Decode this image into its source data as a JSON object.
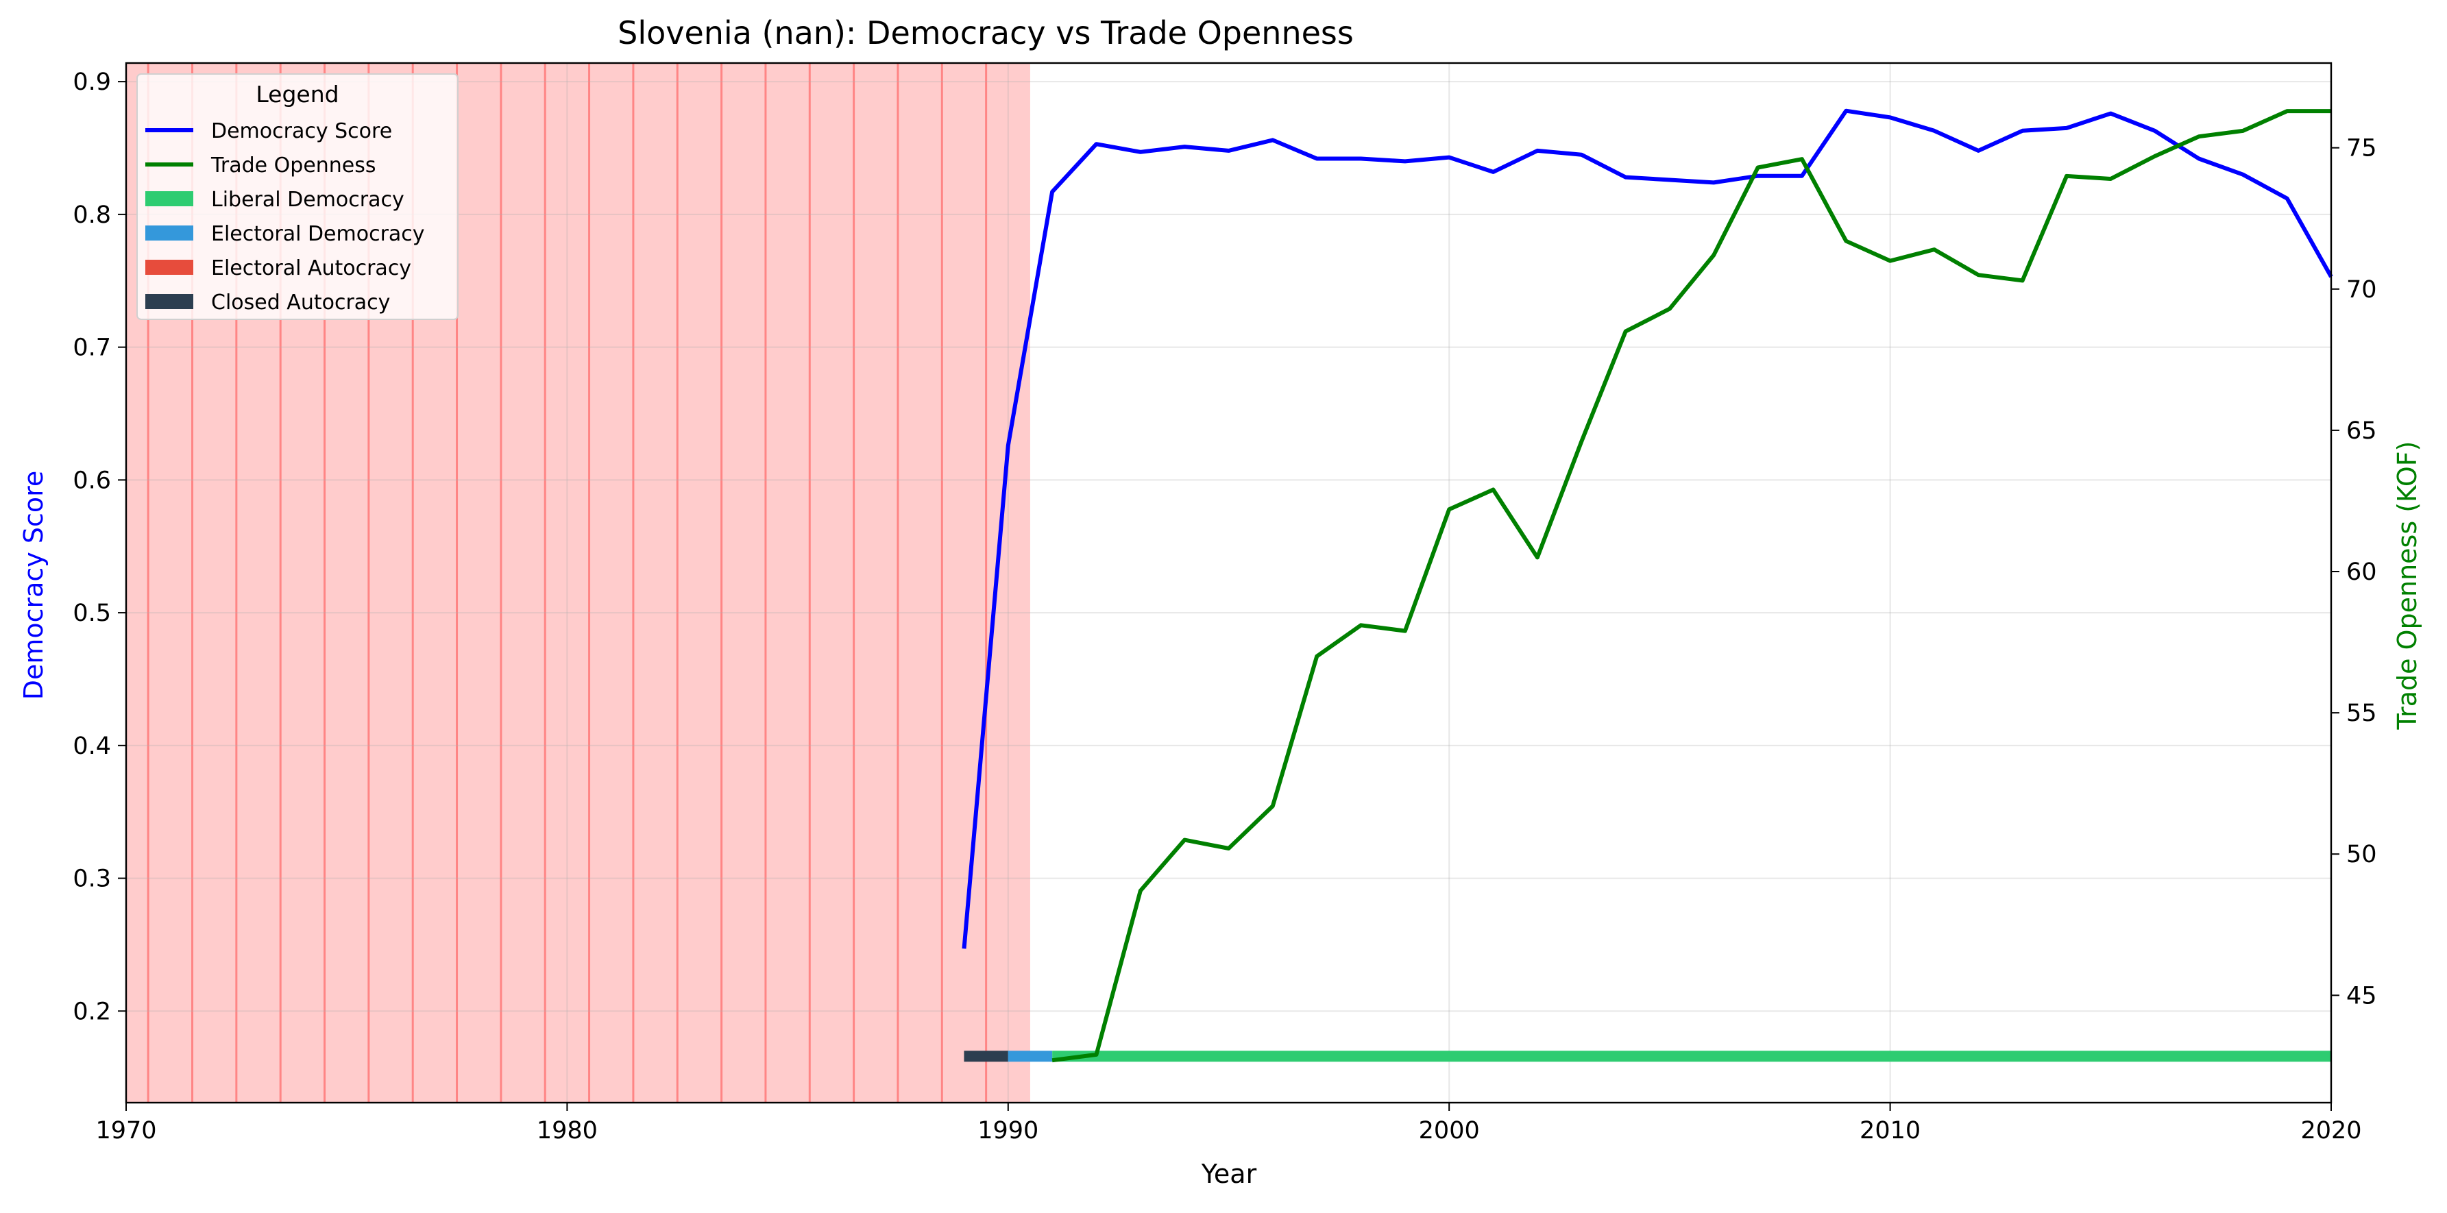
{
  "chart_data": {
    "type": "line",
    "title": "Slovenia (nan): Democracy vs Trade Openness",
    "xlabel": "Year",
    "ylabel_left": "Democracy Score",
    "ylabel_right": "Trade Openness (KOF)",
    "xlim": [
      1970,
      2020
    ],
    "ylim_left": [
      0.131,
      0.914
    ],
    "ylim_right": [
      41.2,
      78.0
    ],
    "x_ticks": [
      1970,
      1980,
      1990,
      2000,
      2010,
      2020
    ],
    "y_left_ticks": [
      0.2,
      0.3,
      0.4,
      0.5,
      0.6,
      0.7,
      0.8,
      0.9
    ],
    "y_right_ticks": [
      45,
      50,
      55,
      60,
      65,
      70,
      75
    ],
    "grid": true,
    "legend": {
      "title": "Legend",
      "position": "upper-left",
      "entries": [
        {
          "label": "Democracy Score",
          "kind": "line",
          "color": "#0000ff"
        },
        {
          "label": "Trade Openness",
          "kind": "line",
          "color": "#008000"
        },
        {
          "label": "Liberal Democracy",
          "kind": "patch",
          "color": "#2ecc71"
        },
        {
          "label": "Electoral Democracy",
          "kind": "patch",
          "color": "#3498db"
        },
        {
          "label": "Electoral Autocracy",
          "kind": "patch",
          "color": "#e74c3c"
        },
        {
          "label": "Closed Autocracy",
          "kind": "patch",
          "color": "#2c3e50"
        }
      ]
    },
    "shaded_region": {
      "start": 1970,
      "end": 1990.5,
      "color": "#ff0000"
    },
    "shaded_region_lines": [
      1970.5,
      1971.5,
      1972.5,
      1973.5,
      1974.5,
      1975.5,
      1976.5,
      1977.5,
      1978.5,
      1979.5,
      1980.5,
      1981.5,
      1982.5,
      1983.5,
      1984.5,
      1985.5,
      1986.5,
      1987.5,
      1988.5,
      1989.5
    ],
    "series": [
      {
        "name": "Democracy Score",
        "axis": "left",
        "color": "#0000ff",
        "x": [
          1989,
          1990,
          1991,
          1992,
          1993,
          1994,
          1995,
          1996,
          1997,
          1998,
          1999,
          2000,
          2001,
          2002,
          2003,
          2004,
          2005,
          2006,
          2007,
          2008,
          2009,
          2010,
          2011,
          2012,
          2013,
          2014,
          2015,
          2016,
          2017,
          2018,
          2019,
          2020
        ],
        "values": [
          0.247,
          0.626,
          0.817,
          0.853,
          0.847,
          0.851,
          0.848,
          0.856,
          0.842,
          0.842,
          0.84,
          0.843,
          0.832,
          0.848,
          0.845,
          0.828,
          0.826,
          0.824,
          0.829,
          0.829,
          0.878,
          0.873,
          0.863,
          0.848,
          0.863,
          0.865,
          0.876,
          0.863,
          0.842,
          0.83,
          0.812,
          0.753
        ]
      },
      {
        "name": "Trade Openness",
        "axis": "right",
        "color": "#008000",
        "x": [
          1991,
          1992,
          1993,
          1994,
          1995,
          1996,
          1997,
          1998,
          1999,
          2000,
          2001,
          2002,
          2003,
          2004,
          2005,
          2006,
          2007,
          2008,
          2009,
          2010,
          2011,
          2012,
          2013,
          2014,
          2015,
          2016,
          2017,
          2018,
          2019,
          2020
        ],
        "values": [
          42.7,
          42.9,
          48.7,
          50.5,
          50.2,
          51.7,
          57.0,
          58.1,
          57.9,
          62.2,
          62.9,
          60.5,
          64.6,
          68.5,
          69.3,
          71.2,
          74.3,
          74.6,
          71.7,
          71.0,
          71.4,
          70.5,
          70.3,
          74.0,
          73.9,
          74.7,
          75.4,
          75.6,
          76.3,
          76.3
        ]
      }
    ],
    "regime_bar": {
      "level": 0.166,
      "segments": [
        {
          "regime": "Closed Autocracy",
          "start": 1989,
          "end": 1990,
          "color": "#2c3e50"
        },
        {
          "regime": "Electoral Democracy",
          "start": 1990,
          "end": 1991,
          "color": "#3498db"
        },
        {
          "regime": "Liberal Democracy",
          "start": 1991,
          "end": 2020,
          "color": "#2ecc71"
        }
      ]
    }
  }
}
